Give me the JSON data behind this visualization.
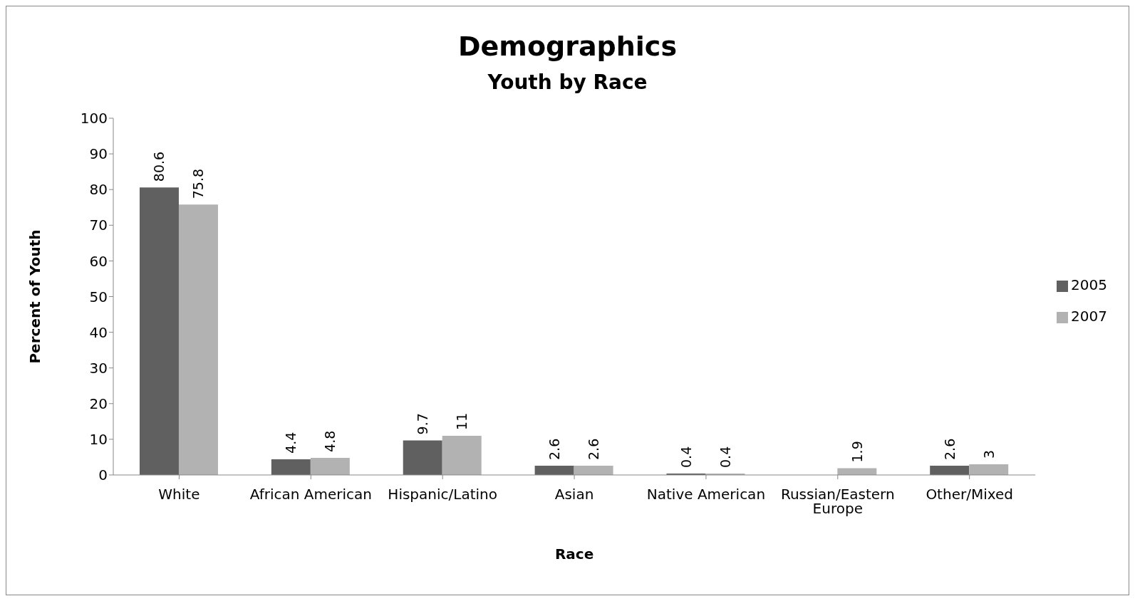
{
  "chart_data": {
    "type": "bar",
    "title": "Demographics",
    "subtitle": "Youth by Race",
    "xlabel": "Race",
    "ylabel": "Percent of Youth",
    "categories": [
      "White",
      "African American",
      "Hispanic/Latino",
      "Asian",
      "Native American",
      "Russian/Eastern Europe",
      "Other/Mixed"
    ],
    "series": [
      {
        "name": "2005",
        "color": "#606060",
        "values": [
          80.6,
          4.4,
          9.7,
          2.6,
          0.4,
          null,
          2.6
        ]
      },
      {
        "name": "2007",
        "color": "#b2b2b2",
        "values": [
          75.8,
          4.8,
          11,
          2.6,
          0.4,
          1.9,
          3
        ]
      }
    ],
    "ylim": [
      0,
      100
    ],
    "yticks": [
      0,
      10,
      20,
      30,
      40,
      50,
      60,
      70,
      80,
      90,
      100
    ],
    "grid": false,
    "legend": "right",
    "data_labels": true
  }
}
